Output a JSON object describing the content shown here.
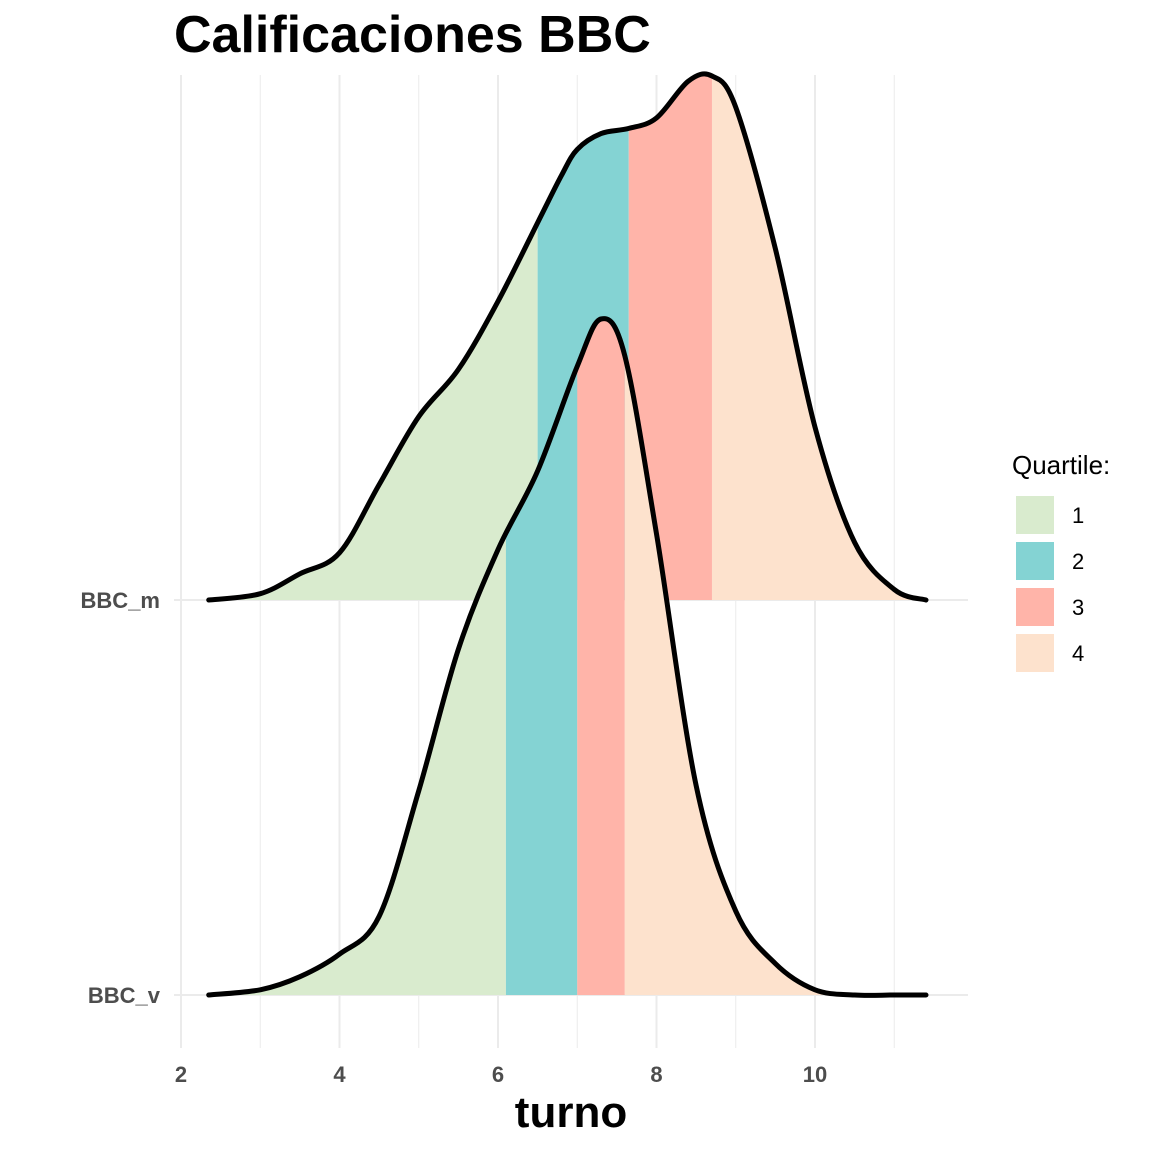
{
  "chart_data": {
    "type": "ridgeline",
    "title": "Calificaciones BBC",
    "xlabel": "turno",
    "ylabel": "",
    "xlim": [
      2,
      11.5
    ],
    "xticks": [
      2,
      4,
      6,
      8,
      10
    ],
    "xtick_labels": [
      "2",
      "4",
      "6",
      "8",
      "10"
    ],
    "grid": true,
    "legend": {
      "title": "Quartile:",
      "placement": "right",
      "entries": [
        {
          "label": "1",
          "color": "#d9ebce"
        },
        {
          "label": "2",
          "color": "#84d3d3"
        },
        {
          "label": "3",
          "color": "#ffb4a9"
        },
        {
          "label": "4",
          "color": "#fde2cd"
        }
      ]
    },
    "series": [
      {
        "name": "BBC_m",
        "quartile_breaks": [
          6.5,
          7.65,
          8.7
        ],
        "density_x": [
          2.35,
          3.0,
          3.5,
          4.0,
          4.5,
          5.0,
          5.5,
          6.0,
          6.5,
          6.8,
          7.0,
          7.3,
          7.65,
          8.0,
          8.4,
          8.7,
          9.0,
          9.5,
          10.0,
          10.5,
          11.0,
          11.4
        ],
        "density_y": [
          0.0,
          0.012,
          0.05,
          0.09,
          0.22,
          0.35,
          0.44,
          0.57,
          0.72,
          0.81,
          0.86,
          0.89,
          0.9,
          0.92,
          0.99,
          1.0,
          0.94,
          0.67,
          0.33,
          0.11,
          0.02,
          0.0
        ]
      },
      {
        "name": "BBC_v",
        "quartile_breaks": [
          6.1,
          7.0,
          7.6
        ],
        "density_x": [
          2.35,
          3.0,
          3.5,
          4.0,
          4.5,
          5.0,
          5.5,
          6.0,
          6.5,
          7.0,
          7.3,
          7.6,
          8.0,
          8.5,
          9.0,
          9.5,
          10.0,
          10.5,
          11.0,
          11.4
        ],
        "density_y": [
          0.0,
          0.01,
          0.035,
          0.078,
          0.15,
          0.39,
          0.66,
          0.85,
          1.0,
          1.2,
          1.29,
          1.22,
          0.88,
          0.4,
          0.16,
          0.06,
          0.01,
          0.0,
          0.0,
          0.0
        ]
      }
    ]
  }
}
